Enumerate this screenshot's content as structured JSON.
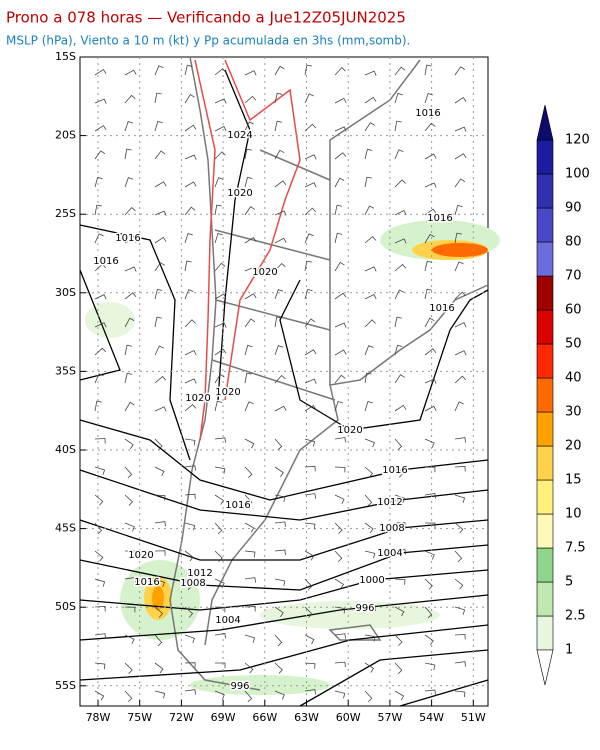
{
  "header": {
    "title": "Prono a 078 horas — Verificando a Jue12Z05JUN2025",
    "subtitle": "MSLP (hPa), Viento a 10 m (kt) y Pp acumulada en 3hs (mm,somb)."
  },
  "map": {
    "lat_labels": [
      "15S",
      "20S",
      "25S",
      "30S",
      "35S",
      "40S",
      "45S",
      "50S",
      "55S"
    ],
    "lon_labels": [
      "78W",
      "75W",
      "72W",
      "69W",
      "66W",
      "63W",
      "60W",
      "57W",
      "54W",
      "51W"
    ],
    "isobar_labels": [
      "1024",
      "1020",
      "1020",
      "1016",
      "1016",
      "1016",
      "1016",
      "1016",
      "1020",
      "1020",
      "1020",
      "1016",
      "1012",
      "1016",
      "1008",
      "1004",
      "1000",
      "996",
      "1020",
      "1012",
      "1008",
      "1016",
      "1004",
      "996"
    ]
  },
  "colorbar": {
    "levels": [
      1,
      2.5,
      5,
      7.5,
      10,
      15,
      20,
      30,
      40,
      50,
      60,
      70,
      80,
      90,
      100,
      120
    ],
    "colors": [
      "#ffffff",
      "#e6f7de",
      "#bfe9b0",
      "#8fd68a",
      "#fff9b8",
      "#fff07a",
      "#ffd24a",
      "#ffa200",
      "#ff6a00",
      "#ff2800",
      "#dc0000",
      "#9e0000",
      "#6c6cdc",
      "#4848c8",
      "#3030b0",
      "#1c1ca0",
      "#0c0c6e"
    ]
  }
}
